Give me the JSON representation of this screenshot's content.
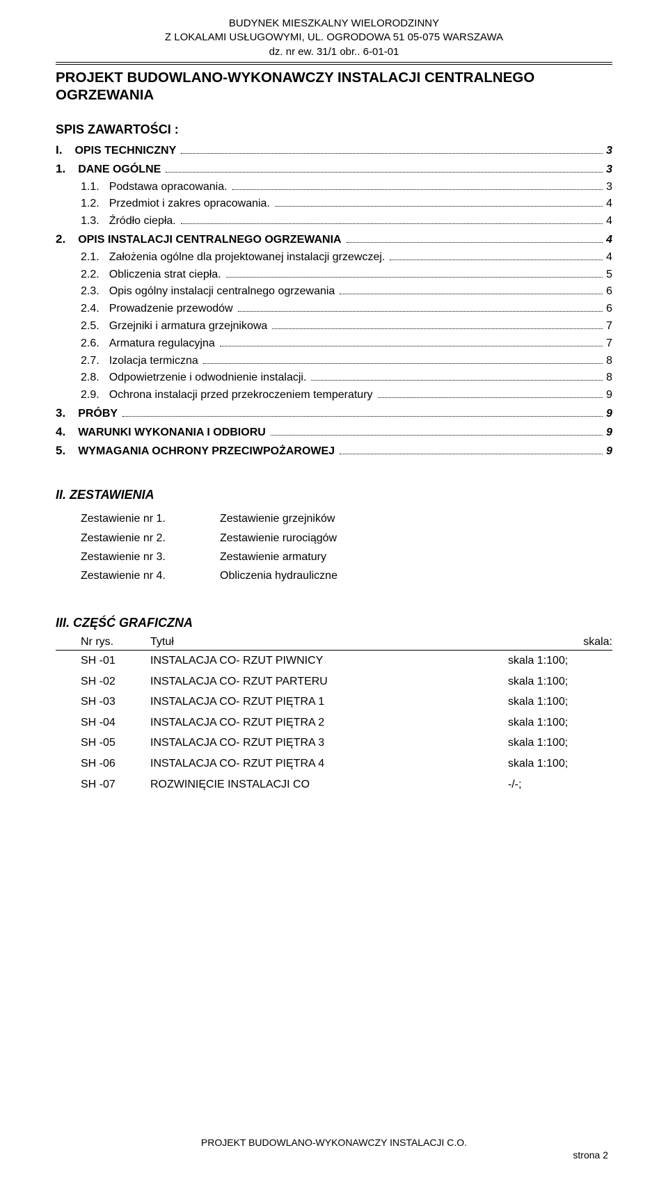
{
  "header": {
    "line1": "BUDYNEK MIESZKALNY WIELORODZINNY",
    "line2": "Z LOKALAMI USŁUGOWYMI, UL. OGRODOWA 51 05-075 WARSZAWA",
    "line3": "dz. nr ew. 31/1 obr.. 6-01-01"
  },
  "main_title_line1": "PROJEKT BUDOWLANO-WYKONAWCZY INSTALACJI CENTRALNEGO",
  "main_title_line2": "OGRZEWANIA",
  "spis_label": "SPIS ZAWARTOŚCI :",
  "toc": [
    {
      "num": "I.",
      "label": "OPIS TECHNICZNY",
      "page": "3",
      "bold": true,
      "sub": false
    },
    {
      "num": "1.",
      "label": "DANE OGÓLNE",
      "page": "3",
      "bold": true,
      "sub": false
    },
    {
      "num": "1.1.",
      "label": "Podstawa opracowania.",
      "page": "3",
      "bold": false,
      "sub": true
    },
    {
      "num": "1.2.",
      "label": "Przedmiot i zakres opracowania.",
      "page": "4",
      "bold": false,
      "sub": true
    },
    {
      "num": "1.3.",
      "label": "Źródło ciepła.",
      "page": "4",
      "bold": false,
      "sub": true
    },
    {
      "num": "2.",
      "label": "OPIS INSTALACJI CENTRALNEGO OGRZEWANIA",
      "page": "4",
      "bold": true,
      "sub": false
    },
    {
      "num": "2.1.",
      "label": "Założenia ogólne dla projektowanej instalacji grzewczej.",
      "page": "4",
      "bold": false,
      "sub": true
    },
    {
      "num": "2.2.",
      "label": "Obliczenia strat ciepła.",
      "page": "5",
      "bold": false,
      "sub": true
    },
    {
      "num": "2.3.",
      "label": "Opis ogólny instalacji centralnego ogrzewania",
      "page": "6",
      "bold": false,
      "sub": true
    },
    {
      "num": "2.4.",
      "label": "Prowadzenie przewodów",
      "page": "6",
      "bold": false,
      "sub": true
    },
    {
      "num": "2.5.",
      "label": "Grzejniki i armatura grzejnikowa",
      "page": "7",
      "bold": false,
      "sub": true
    },
    {
      "num": "2.6.",
      "label": "Armatura regulacyjna",
      "page": "7",
      "bold": false,
      "sub": true
    },
    {
      "num": "2.7.",
      "label": "Izolacja termiczna",
      "page": "8",
      "bold": false,
      "sub": true
    },
    {
      "num": "2.8.",
      "label": "Odpowietrzenie i odwodnienie instalacji.",
      "page": "8",
      "bold": false,
      "sub": true
    },
    {
      "num": "2.9.",
      "label": "Ochrona instalacji przed przekroczeniem temperatury",
      "page": "9",
      "bold": false,
      "sub": true
    },
    {
      "num": "3.",
      "label": "PRÓBY",
      "page": "9",
      "bold": true,
      "sub": false
    },
    {
      "num": "4.",
      "label": "WARUNKI WYKONANIA I ODBIORU",
      "page": "9",
      "bold": true,
      "sub": false
    },
    {
      "num": "5.",
      "label": "WYMAGANIA OCHRONY PRZECIWPOŻAROWEJ",
      "page": "9",
      "bold": true,
      "sub": false
    }
  ],
  "zestawienia": {
    "heading": "II. ZESTAWIENIA",
    "rows": [
      {
        "left": "Zestawienie nr 1.",
        "right": "Zestawienie grzejników"
      },
      {
        "left": "Zestawienie nr 2.",
        "right": "Zestawienie rurociągów"
      },
      {
        "left": "Zestawienie nr 3.",
        "right": "Zestawienie armatury"
      },
      {
        "left": "Zestawienie nr 4.",
        "right": "Obliczenia hydrauliczne"
      }
    ]
  },
  "graficzna": {
    "heading": "III. CZĘŚĆ GRAFICZNA",
    "hdr": {
      "c1": "Nr rys.",
      "c2": "Tytuł",
      "c3": "skala:"
    },
    "rows": [
      {
        "c1": "SH -01",
        "c2": "INSTALACJA CO- RZUT PIWNICY",
        "c3": "skala 1:100;"
      },
      {
        "c1": "SH -02",
        "c2": "INSTALACJA CO- RZUT PARTERU",
        "c3": "skala 1:100;"
      },
      {
        "c1": "SH -03",
        "c2": "INSTALACJA CO- RZUT PIĘTRA 1",
        "c3": "skala 1:100;"
      },
      {
        "c1": "SH -04",
        "c2": "INSTALACJA CO- RZUT PIĘTRA 2",
        "c3": "skala 1:100;"
      },
      {
        "c1": "SH -05",
        "c2": "INSTALACJA CO- RZUT PIĘTRA 3",
        "c3": "skala 1:100;"
      },
      {
        "c1": "SH -06",
        "c2": "INSTALACJA CO- RZUT PIĘTRA 4",
        "c3": "skala 1:100;"
      },
      {
        "c1": "SH -07",
        "c2": "ROZWINIĘCIE INSTALACJI CO",
        "c3": "-/-;"
      }
    ]
  },
  "footer": {
    "line": "PROJEKT BUDOWLANO-WYKONAWCZY INSTALACJI C.O.",
    "page": "strona 2"
  }
}
